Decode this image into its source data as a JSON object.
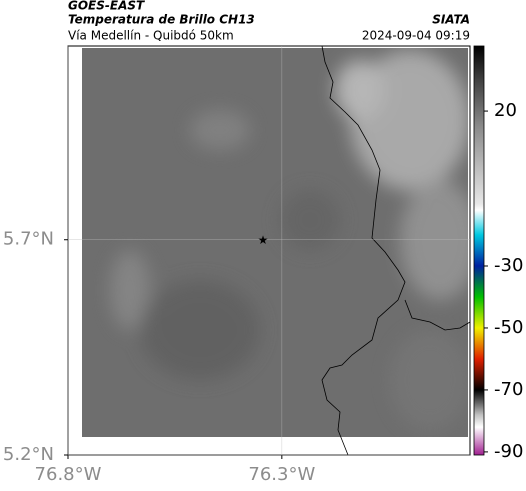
{
  "header": {
    "source": "GOES-EAST",
    "title": "Temperatura de Brillo CH13",
    "subtitle": "Vía Medellín - Quibdó 50km",
    "brand": "SIATA",
    "datetime": "2024-09-04 09:19"
  },
  "map": {
    "xlim": [
      -76.8,
      -75.86
    ],
    "ylim": [
      5.2,
      6.15
    ],
    "xticks": [
      {
        "value": -76.8,
        "label": "76.8°W"
      },
      {
        "value": -76.3,
        "label": "76.3°W"
      }
    ],
    "yticks": [
      {
        "value": 5.7,
        "label": "5.7°N"
      },
      {
        "value": 5.2,
        "label": "5.2°N"
      }
    ],
    "grid": true,
    "marker": {
      "lon": -76.344,
      "lat": 5.7
    }
  },
  "colorbar": {
    "clim": [
      -91,
      41
    ],
    "ticks": [
      20,
      -30,
      -50,
      -70,
      -90
    ],
    "colorscale": [
      [
        41,
        "#000000"
      ],
      [
        30,
        "#404040"
      ],
      [
        15,
        "#8a8a8a"
      ],
      [
        -10,
        "#e8e8e8"
      ],
      [
        -12,
        "#ffffff"
      ],
      [
        -20,
        "#00c8e0"
      ],
      [
        -30,
        "#0020a0"
      ],
      [
        -40,
        "#00c000"
      ],
      [
        -50,
        "#f0f000"
      ],
      [
        -60,
        "#e02000"
      ],
      [
        -70,
        "#000000"
      ],
      [
        -78,
        "#c0c0c0"
      ],
      [
        -82,
        "#ffffff"
      ],
      [
        -91,
        "#a02090"
      ]
    ]
  }
}
